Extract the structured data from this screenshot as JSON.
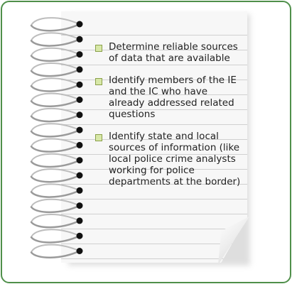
{
  "notes": {
    "items": [
      {
        "text": "Determine reliable sources of data that are available"
      },
      {
        "text": "Identify members of the IE and the IC who have already addressed related questions"
      },
      {
        "text": "Identify state and local sources of information (like local police crime analysts working for police departments at the border)"
      }
    ]
  },
  "colors": {
    "frame_border": "#4f8f4a",
    "bullet_fill": "#d8e8a8",
    "bullet_border": "#8aa04a",
    "paper": "#f7f7f7",
    "rule_line": "#d0d0d0",
    "spiral_wire": "#9a9a9a"
  },
  "icons": {
    "bullet": "square-bullet-icon",
    "binding": "spiral-binding-icon"
  }
}
